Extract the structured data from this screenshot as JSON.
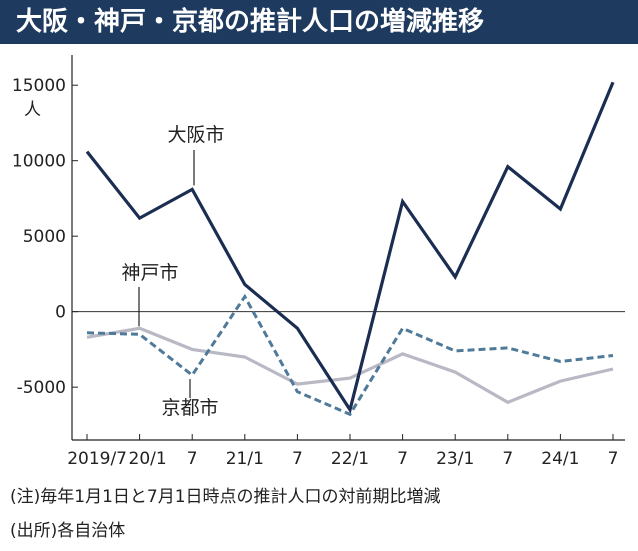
{
  "chart_data": {
    "type": "line",
    "title": "大阪・神戸・京都の推計人口の増減推移",
    "ylabel": "人",
    "ylim": [
      -8500,
      17000
    ],
    "y_ticks": [
      15000,
      10000,
      5000,
      0,
      -5000
    ],
    "y_tick_labels": [
      "15000",
      "10000",
      "5000",
      "0",
      "-5000"
    ],
    "x_tick_labels": [
      "2019/7",
      "20/1",
      "7",
      "21/1",
      "7",
      "22/1",
      "7",
      "23/1",
      "7",
      "24/1",
      "7"
    ],
    "series": [
      {
        "name": "大阪市",
        "color": "#1b2e52",
        "style": "solid",
        "values": [
          10600,
          6200,
          8100,
          1800,
          -1100,
          -6500,
          7300,
          2300,
          9600,
          6800,
          15200
        ]
      },
      {
        "name": "神戸市",
        "color": "#b9b9c5",
        "style": "solid",
        "values": [
          -1700,
          -1100,
          -2500,
          -3000,
          -4800,
          -4400,
          -2800,
          -4000,
          -6000,
          -4600,
          -3800
        ]
      },
      {
        "name": "京都市",
        "color": "#4f7a99",
        "style": "dashed",
        "values": [
          -1400,
          -1500,
          -4200,
          1000,
          -5300,
          -6800,
          -1100,
          -2600,
          -2400,
          -3300,
          -2900
        ]
      }
    ],
    "annotations": [
      "大阪市",
      "神戸市",
      "京都市"
    ]
  },
  "notes": {
    "line1": "(注)毎年1月1日と7月1日時点の推計人口の対前期比増減",
    "line2": "(出所)各自治体"
  }
}
